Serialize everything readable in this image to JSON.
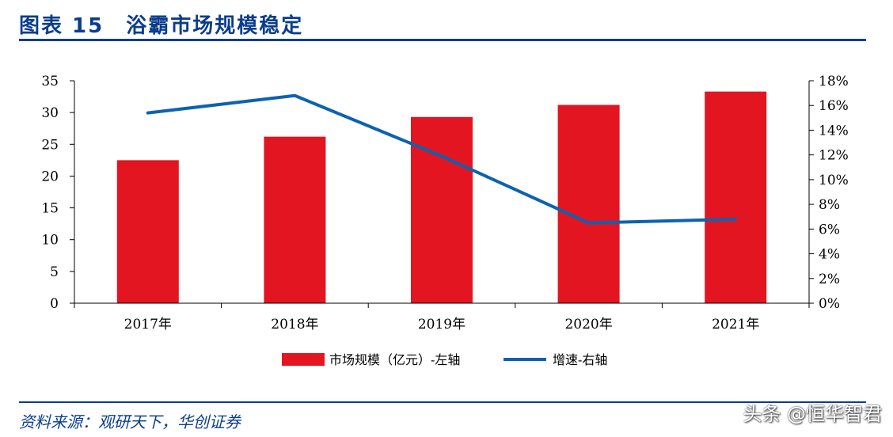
{
  "title": "图表 15　浴霸市场规模稳定",
  "source": "资料来源：观研天下，华创证券",
  "watermark": "头条 @恒华智君",
  "colors": {
    "bar": "#e31520",
    "line": "#0d62b0",
    "title": "#0a3d8f",
    "axis": "#000000"
  },
  "chart_data": {
    "type": "bar+line",
    "title": "浴霸市场规模稳定",
    "categories": [
      "2017年",
      "2018年",
      "2019年",
      "2020年",
      "2021年"
    ],
    "series": [
      {
        "name": "市场规模（亿元）-左轴",
        "type": "bar",
        "axis": "left",
        "values": [
          22.5,
          26.2,
          29.3,
          31.2,
          33.3
        ]
      },
      {
        "name": "增速-右轴",
        "type": "line",
        "axis": "right",
        "values": [
          15.4,
          16.8,
          11.9,
          6.5,
          6.8
        ]
      }
    ],
    "left_axis": {
      "min": 0,
      "max": 35,
      "step": 5,
      "ticks": [
        "0",
        "5",
        "10",
        "15",
        "20",
        "25",
        "30",
        "35"
      ]
    },
    "right_axis": {
      "min": 0,
      "max": 18,
      "step": 2,
      "ticks": [
        "0%",
        "2%",
        "4%",
        "6%",
        "8%",
        "10%",
        "12%",
        "14%",
        "16%",
        "18%"
      ]
    },
    "legend": {
      "position": "bottom",
      "items": [
        "市场规模（亿元）-左轴",
        "增速-右轴"
      ]
    }
  }
}
